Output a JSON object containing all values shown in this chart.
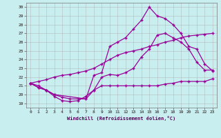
{
  "background_color": "#c8eef0",
  "line_color": "#990099",
  "grid_color": "#b0b0b0",
  "xlim": [
    -0.5,
    23.5
  ],
  "ylim": [
    18.5,
    30.5
  ],
  "yticks": [
    19,
    20,
    21,
    22,
    23,
    24,
    25,
    26,
    27,
    28,
    29,
    30
  ],
  "xticks": [
    0,
    1,
    2,
    3,
    4,
    5,
    6,
    7,
    8,
    9,
    10,
    11,
    12,
    13,
    14,
    15,
    16,
    17,
    18,
    19,
    20,
    21,
    22,
    23
  ],
  "xlabel": "Windchill (Refroidissement éolien,°C)",
  "line1_x": [
    0,
    1,
    2,
    3,
    4,
    5,
    6,
    7,
    8,
    9,
    10,
    11,
    12,
    13,
    14,
    15,
    16,
    17,
    18,
    19,
    20,
    21,
    22,
    23
  ],
  "line1_y": [
    21.3,
    21.0,
    20.5,
    19.8,
    19.3,
    19.2,
    19.3,
    19.8,
    20.5,
    21.0,
    21.0,
    21.0,
    21.0,
    21.0,
    21.0,
    21.0,
    21.0,
    21.2,
    21.3,
    21.5,
    21.5,
    21.5,
    21.5,
    21.8
  ],
  "line2_x": [
    0,
    1,
    2,
    3,
    4,
    5,
    6,
    7,
    8,
    9,
    10,
    11,
    12,
    13,
    14,
    15,
    16,
    17,
    18,
    19,
    20,
    21,
    22,
    23
  ],
  "line2_y": [
    21.3,
    21.5,
    21.7,
    22.0,
    22.2,
    22.3,
    22.5,
    22.7,
    23.0,
    23.5,
    24.0,
    24.5,
    24.8,
    25.0,
    25.2,
    25.5,
    25.7,
    26.0,
    26.2,
    26.5,
    26.7,
    26.8,
    26.9,
    27.0
  ],
  "line3_x": [
    0,
    1,
    2,
    3,
    7,
    8,
    9,
    10,
    11,
    12,
    13,
    14,
    15,
    16,
    17,
    18,
    19,
    20,
    21,
    22,
    23
  ],
  "line3_y": [
    21.3,
    20.8,
    20.5,
    20.0,
    19.5,
    22.2,
    22.5,
    25.5,
    26.0,
    26.5,
    27.5,
    28.5,
    30.0,
    29.0,
    28.7,
    28.0,
    27.0,
    25.5,
    25.2,
    23.5,
    22.7
  ],
  "line4_x": [
    0,
    1,
    2,
    3,
    4,
    5,
    6,
    7,
    8,
    9,
    10,
    11,
    12,
    13,
    14,
    15,
    16,
    17,
    18,
    19,
    20,
    21,
    22,
    23
  ],
  "line4_y": [
    21.3,
    20.8,
    20.5,
    20.0,
    19.7,
    19.5,
    19.5,
    19.5,
    20.5,
    22.0,
    22.3,
    22.2,
    22.5,
    23.0,
    24.3,
    25.2,
    26.8,
    27.0,
    26.5,
    26.0,
    25.2,
    23.7,
    22.8,
    22.8
  ]
}
